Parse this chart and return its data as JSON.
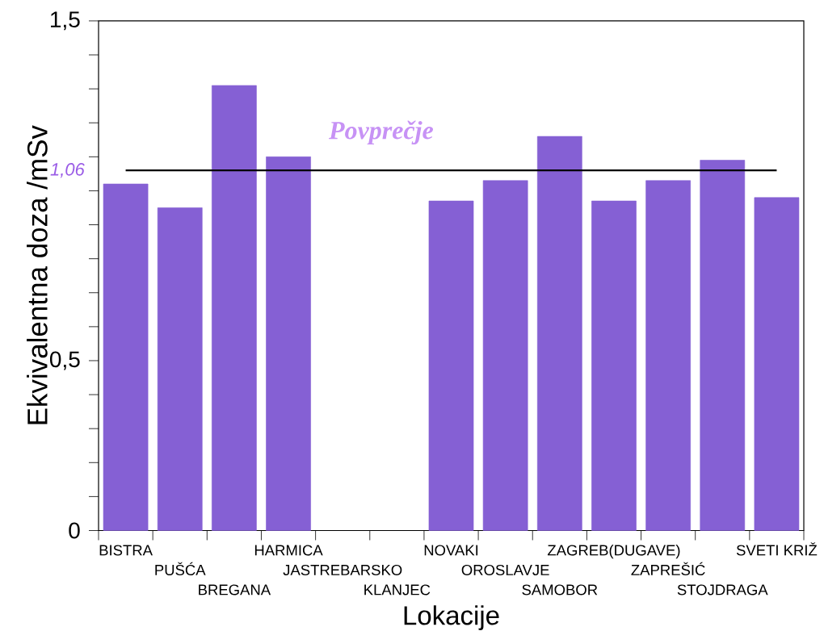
{
  "chart_data": {
    "type": "bar",
    "xlabel": "Lokacije",
    "ylabel": "Ekvivalentna doza /mSv",
    "categories": [
      "BISTRA",
      "PUŠĆA",
      "BREGANA",
      "HARMICA",
      "JASTREBARSKO",
      "KLANJEC",
      "NOVAKI",
      "OROSLAVJE",
      "SAMOBOR",
      "ZAGREB(DUGAVE)",
      "ZAPREŠIĆ",
      "STOJDRAGA",
      "SVETI KRIŽ"
    ],
    "values": [
      1.02,
      0.95,
      1.31,
      1.1,
      null,
      null,
      0.97,
      1.03,
      1.16,
      0.97,
      1.03,
      1.09,
      0.98
    ],
    "color": "#8560d4",
    "ylim": [
      0,
      1.5
    ],
    "yticks": [
      0,
      {
        "value": 0.1,
        "label": null
      },
      {
        "value": 0.2,
        "label": null
      },
      {
        "value": 0.3,
        "label": null
      },
      {
        "value": 0.4,
        "label": null
      },
      {
        "value": 0.5,
        "label": "0,5"
      },
      {
        "value": 0.6,
        "label": null
      },
      {
        "value": 0.7,
        "label": null
      },
      {
        "value": 0.8,
        "label": null
      },
      {
        "value": 0.9,
        "label": null
      },
      {
        "value": 1,
        "label": null
      },
      {
        "value": 1.1,
        "label": null
      },
      {
        "value": 1.2,
        "label": null
      },
      {
        "value": 1.3,
        "label": null
      },
      {
        "value": 1.4,
        "label": null
      },
      {
        "value": 1.5,
        "label": "1,5"
      }
    ],
    "ref_lines": [
      {
        "axis": "y",
        "value": 1.06,
        "label": "1,06",
        "color": "#000000"
      }
    ],
    "annotations": [
      {
        "text": "Povprečje",
        "y": 1.06
      }
    ]
  }
}
